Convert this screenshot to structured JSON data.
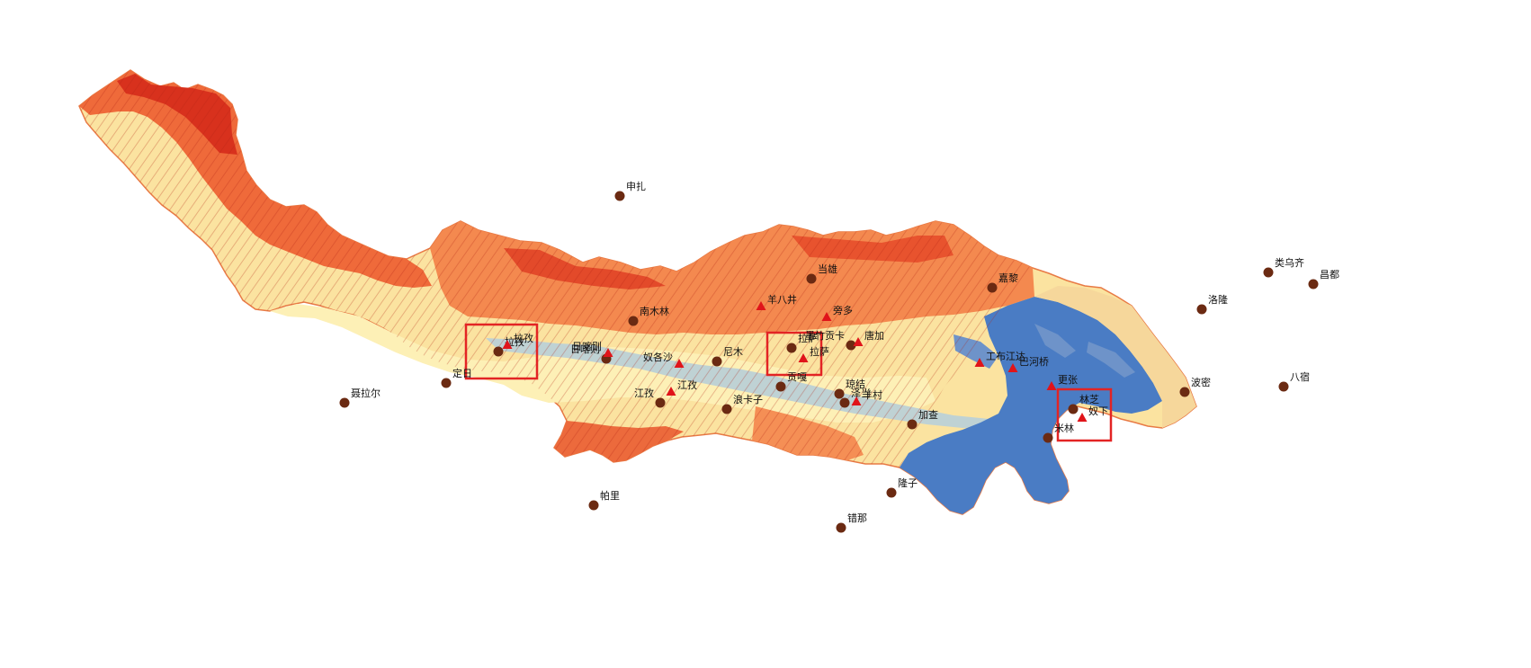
{
  "colors": {
    "background": "#ffffff",
    "elev_high": "#d7301f",
    "elev_mid_high": "#f07a46",
    "elev_mid": "#f9b677",
    "elev_low_mid": "#fde8a6",
    "elev_low": "#f8f3c4",
    "valley": "#b8cfd6",
    "lowland": "#4a7cc4",
    "station_fill": "#6b2a12",
    "triangle_fill": "#e0141a",
    "box_stroke": "#e32424"
  },
  "legend": {
    "elevation_ramp": "red-orange-yellow-blue (high to low)"
  },
  "stations": [
    {
      "name": "申扎"
    },
    {
      "name": "当雄"
    },
    {
      "name": "嘉黎"
    },
    {
      "name": "类乌齐"
    },
    {
      "name": "昌都"
    },
    {
      "name": "洛隆"
    },
    {
      "name": "南木林"
    },
    {
      "name": "日喀则"
    },
    {
      "name": "尼木"
    },
    {
      "name": "拉孜"
    },
    {
      "name": "定日"
    },
    {
      "name": "聂拉尔"
    },
    {
      "name": "拉萨"
    },
    {
      "name": "墨竹贡卡"
    },
    {
      "name": "贡嘎"
    },
    {
      "name": "江孜"
    },
    {
      "name": "浪卡子"
    },
    {
      "name": "琼结"
    },
    {
      "name": "泽当"
    },
    {
      "name": "加查"
    },
    {
      "name": "林芝"
    },
    {
      "name": "米林"
    },
    {
      "name": "波密"
    },
    {
      "name": "八宿"
    },
    {
      "name": "隆子"
    },
    {
      "name": "错那"
    },
    {
      "name": "帕里"
    }
  ],
  "hydro_stations": [
    {
      "name": "拉孜"
    },
    {
      "name": "日喀则"
    },
    {
      "name": "奴各沙"
    },
    {
      "name": "羊八井"
    },
    {
      "name": "旁多"
    },
    {
      "name": "唐加"
    },
    {
      "name": "拉萨"
    },
    {
      "name": "羊村"
    },
    {
      "name": "江孜"
    },
    {
      "name": "工布江达"
    },
    {
      "name": "巴河桥"
    },
    {
      "name": "更张"
    },
    {
      "name": "奴下"
    }
  ],
  "highlight_boxes": [
    {
      "name": "拉孜"
    },
    {
      "name": "拉萨"
    },
    {
      "name": "奴下"
    }
  ]
}
